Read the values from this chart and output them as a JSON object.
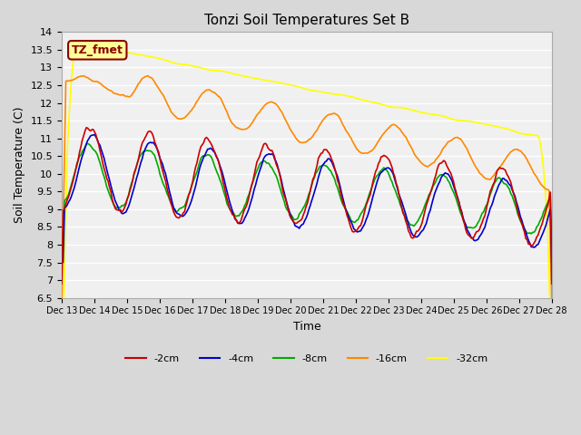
{
  "title": "Tonzi Soil Temperatures Set B",
  "xlabel": "Time",
  "ylabel": "Soil Temperature (C)",
  "ylim": [
    6.5,
    14.0
  ],
  "yticks": [
    6.5,
    7.0,
    7.5,
    8.0,
    8.5,
    9.0,
    9.5,
    10.0,
    10.5,
    11.0,
    11.5,
    12.0,
    12.5,
    13.0,
    13.5,
    14.0
  ],
  "xtick_labels": [
    "Dec 13",
    "Dec 14",
    "Dec 15",
    "Dec 16",
    "Dec 17",
    "Dec 18",
    "Dec 19",
    "Dec 20",
    "Dec 21",
    "Dec 22",
    "Dec 23",
    "Dec 24",
    "Dec 25",
    "Dec 26",
    "Dec 27",
    "Dec 28"
  ],
  "legend_label": "TZ_fmet",
  "legend_box_color": "#ffff99",
  "legend_box_border": "#8b0000",
  "series_labels": [
    "-2cm",
    "-4cm",
    "-8cm",
    "-16cm",
    "-32cm"
  ],
  "series_colors": [
    "#cc0000",
    "#0000cc",
    "#00aa00",
    "#ff8800",
    "#ffff00"
  ],
  "background_color": "#e8e8e8",
  "plot_bg_color": "#f0f0f0",
  "grid_color": "#ffffff",
  "n_points": 360
}
